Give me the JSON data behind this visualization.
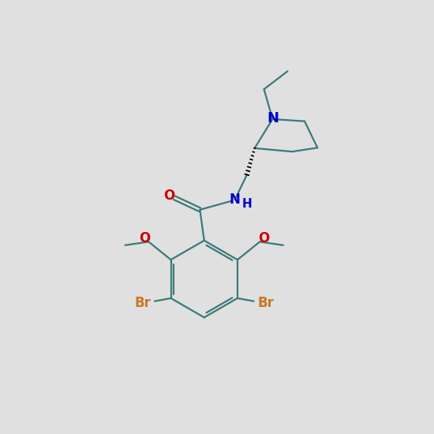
{
  "background_color": "#e0e0e0",
  "bond_color": "#3a7a7a",
  "bond_width": 1.6,
  "N_color": "#0000cc",
  "O_color": "#cc0000",
  "Br_color": "#cc7722",
  "font_size": 10,
  "fig_width": 5.5,
  "fig_height": 5.5,
  "dpi": 100,
  "xlim": [
    0,
    10
  ],
  "ylim": [
    0,
    10
  ]
}
